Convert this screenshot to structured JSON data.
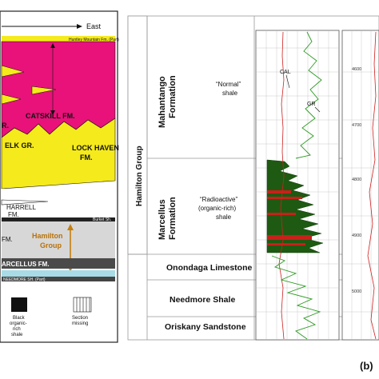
{
  "panel_a": {
    "direction_label": "East",
    "formations": {
      "huntley_mountain": "Huntley Mountain Fm. (Part)",
      "catskill": "CATSKILL FM.",
      "elk": "ELK GR.",
      "elk_partial": "R.",
      "lock_haven": "LOCK HAVEN",
      "lock_haven_fm": "FM.",
      "harrell": "HARRELL",
      "harrell_fm": "FM.",
      "burket": "Burket Sh.",
      "fm_partial": "FM.",
      "marcellus": "ARCELLUS FM.",
      "needmore": "NEEDMORE SH. (Part)"
    },
    "hamilton_group": [
      "Hamilton",
      "Group"
    ],
    "legend": [
      {
        "label": [
          "Black",
          "organic-",
          "rich",
          "shale"
        ],
        "swatch": "black"
      },
      {
        "label": [
          "Section",
          "missing"
        ],
        "swatch": "hatched"
      }
    ],
    "colors": {
      "catskill": "#e8127a",
      "lock_haven": "#f5ea1c",
      "marcellus": "#4a4a4a",
      "needmore": "#a8dbe6",
      "hamilton": "#c47f0f"
    }
  },
  "panel_b": {
    "group_label": "Hamilton Group",
    "units": [
      {
        "name": [
          "Mahantango",
          "Formation"
        ],
        "description": [
          "“Normal”",
          "shale"
        ]
      },
      {
        "name": [
          "Marcellus",
          "Formation"
        ],
        "description": [
          "“Radioactive”",
          "(organic-rich)",
          "shale"
        ]
      },
      {
        "name": [
          "Onondaga Limestone"
        ]
      },
      {
        "name": [
          "Needmore Shale"
        ]
      },
      {
        "name": [
          "Oriskany Sandstone"
        ]
      }
    ],
    "curve_labels": {
      "cal": "CAL",
      "gr": "GR"
    },
    "depth_marks": [
      "4600",
      "4700",
      "4800",
      "4900",
      "5000"
    ],
    "panel_label": "(b)"
  }
}
